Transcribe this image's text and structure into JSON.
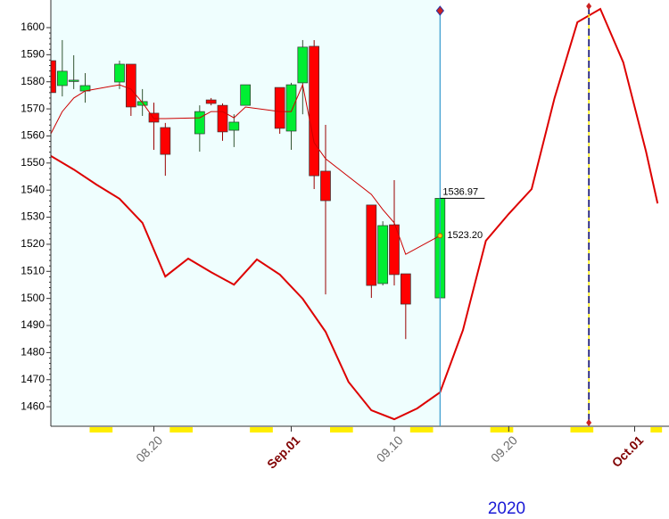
{
  "chart_data": {
    "type": "candlestick",
    "x": [
      "2020-08-11",
      "2020-08-12",
      "2020-08-13",
      "2020-08-14",
      "2020-08-17",
      "2020-08-18",
      "2020-08-19",
      "2020-08-20",
      "2020-08-21",
      "2020-08-24",
      "2020-08-25",
      "2020-08-26",
      "2020-08-27",
      "2020-08-28",
      "2020-08-31",
      "2020-09-01",
      "2020-09-02",
      "2020-09-03",
      "2020-09-04",
      "2020-09-08",
      "2020-09-09",
      "2020-09-10",
      "2020-09-11",
      "2020-09-14"
    ],
    "open": [
      1587.8,
      1578.6,
      1580.6,
      1576.6,
      1579.9,
      1586.5,
      1571.3,
      1568.4,
      1563.1,
      1560.8,
      1573.3,
      1571.3,
      1562.1,
      1571.3,
      1577.9,
      1561.8,
      1579.6,
      1593.1,
      1547.0,
      1534.5,
      1505.5,
      1527.2,
      1509.1,
      1500.2
    ],
    "high": [
      1605.3,
      1595.4,
      1589.8,
      1583.2,
      1587.8,
      1586.5,
      1577.3,
      1572.3,
      1564.8,
      1571.3,
      1574.0,
      1572.0,
      1568.0,
      1578.9,
      1577.9,
      1579.6,
      1595.4,
      1595.4,
      1564.1,
      1534.5,
      1528.5,
      1543.7,
      1509.1,
      1536.97
    ],
    "low": [
      1570.7,
      1574.6,
      1577.3,
      1572.3,
      1577.3,
      1567.4,
      1567.4,
      1554.9,
      1545.3,
      1554.2,
      1571.3,
      1558.2,
      1555.9,
      1571.3,
      1560.8,
      1554.9,
      1568.0,
      1540.4,
      1501.5,
      1500.2,
      1504.8,
      1504.8,
      1485.0,
      1500.2
    ],
    "close": [
      1576.0,
      1583.9,
      1580.6,
      1578.6,
      1586.5,
      1570.7,
      1572.7,
      1565.1,
      1553.2,
      1569.0,
      1572.0,
      1561.5,
      1565.1,
      1578.9,
      1562.8,
      1578.9,
      1592.8,
      1545.3,
      1536.1,
      1504.8,
      1526.9,
      1508.8,
      1497.9,
      1536.97
    ],
    "up_color": "#00ee33",
    "down_color": "#ff0000",
    "ma": {
      "color": "#cc0000",
      "values": [
        1560.8,
        1569.0,
        1574.0,
        1576.6,
        1578.9,
        1577.3,
        1572.3,
        1566.4,
        1566.4,
        1566.7,
        1569.0,
        1569.0,
        1566.7,
        1570.7,
        1569.0,
        1569.0,
        1578.9,
        1557.5,
        1551.6,
        1538.4,
        1532.8,
        1527.9,
        1516.3,
        1523.2
      ]
    },
    "curve": {
      "color": "#dd0000",
      "x": [
        "2020-08-11",
        "2020-08-13",
        "2020-08-15",
        "2020-08-17",
        "2020-08-19",
        "2020-08-21",
        "2020-08-23",
        "2020-08-25",
        "2020-08-27",
        "2020-08-29",
        "2020-08-31",
        "2020-09-02",
        "2020-09-04",
        "2020-09-06",
        "2020-09-08",
        "2020-09-10",
        "2020-09-12",
        "2020-09-14",
        "2020-09-16",
        "2020-09-18",
        "2020-09-20",
        "2020-09-22",
        "2020-09-24",
        "2020-09-26",
        "2020-09-28",
        "2020-09-30",
        "2020-10-02",
        "2020-10-03"
      ],
      "values": [
        1552.6,
        1547.6,
        1542.0,
        1536.8,
        1527.9,
        1508.1,
        1514.7,
        1509.7,
        1505.1,
        1514.4,
        1508.8,
        1499.9,
        1487.7,
        1469.2,
        1458.7,
        1455.4,
        1459.4,
        1465.3,
        1488.3,
        1521.3,
        1531.2,
        1540.4,
        1574.0,
        1602.0,
        1606.9,
        1587.2,
        1554.2,
        1535.1
      ]
    },
    "cursor_date": "2020-09-14",
    "marker_date": "2020-09-27",
    "annotations": [
      "1536.97",
      "1523.20"
    ],
    "ylim": [
      1452.8,
      1610.2
    ],
    "yticks": [
      1460,
      1470,
      1480,
      1490,
      1500,
      1510,
      1520,
      1530,
      1540,
      1550,
      1560,
      1570,
      1580,
      1590,
      1600
    ],
    "xlim": [
      "2020-08-11",
      "2020-10-04"
    ],
    "xticks": [
      {
        "value": "2020-08-20",
        "label": "08.20"
      },
      {
        "value": "2020-09-01",
        "label": "Sep.01",
        "emphasis": true
      },
      {
        "value": "2020-09-10",
        "label": "09.10"
      },
      {
        "value": "2020-09-20",
        "label": "09.20"
      },
      {
        "value": "2020-10-01",
        "label": "Oct.01",
        "emphasis": true
      }
    ],
    "year_label": "2020"
  }
}
